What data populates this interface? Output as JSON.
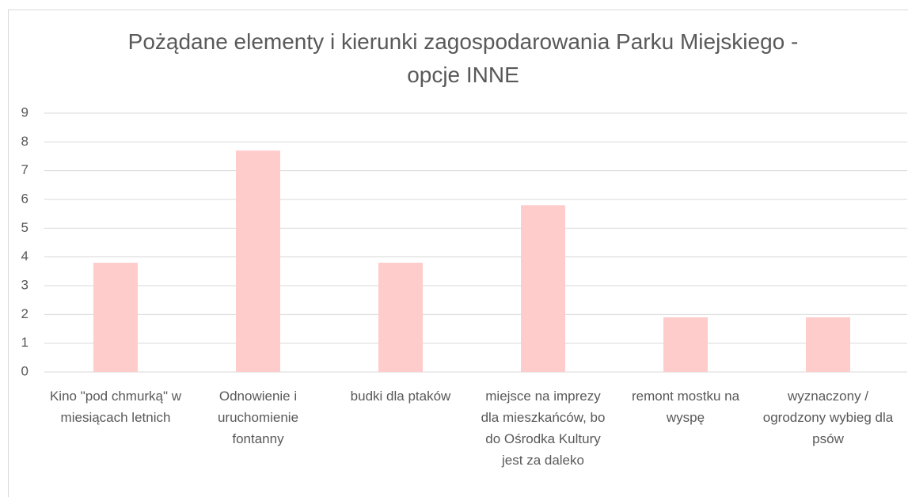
{
  "chart_data": {
    "type": "bar",
    "title": "Pożądane elementy i kierunki zagospodarowania Parku Miejskiego - opcje INNE",
    "categories": [
      "Kino \"pod chmurką\" w miesiącach letnich",
      "Odnowienie i uruchomienie fontanny",
      "budki dla ptaków",
      "miejsce na imprezy dla mieszkańców, bo do Ośrodka Kultury jest za daleko",
      "remont mostku na wyspę",
      "wyznaczony / ogrodzony wybieg dla psów"
    ],
    "values": [
      3.8,
      7.7,
      3.8,
      5.8,
      1.9,
      1.9
    ],
    "color": "#ffcccc",
    "ylim": [
      0,
      9
    ],
    "yticks": [
      0,
      1,
      2,
      3,
      4,
      5,
      6,
      7,
      8,
      9
    ],
    "grid": true
  }
}
